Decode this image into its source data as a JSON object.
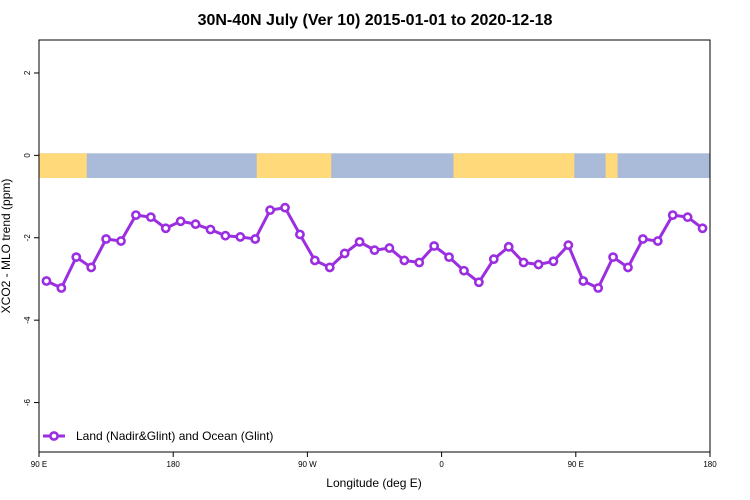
{
  "chart_data": {
    "type": "line",
    "title": "30N-40N July (Ver 10)   2015-01-01 to 2020-12-18",
    "xlabel": "Longitude (deg E)",
    "ylabel": "XCO2 - MLO trend (ppm)",
    "xlim": [
      90,
      540
    ],
    "ylim": [
      -7.2,
      2.8
    ],
    "x_ticks": [
      {
        "value": 90,
        "label": "90 E"
      },
      {
        "value": 180,
        "label": "180"
      },
      {
        "value": 270,
        "label": "90 W"
      },
      {
        "value": 360,
        "label": "0"
      },
      {
        "value": 450,
        "label": "90 E"
      },
      {
        "value": 540,
        "label": "180"
      }
    ],
    "y_ticks": [
      {
        "value": 2,
        "label": "2"
      },
      {
        "value": 0,
        "label": "0"
      },
      {
        "value": -2,
        "label": "-2"
      },
      {
        "value": -4,
        "label": "-4"
      },
      {
        "value": -6,
        "label": "-6"
      }
    ],
    "land_ocean_band": {
      "y_top": 0.05,
      "y_bottom": -0.55,
      "ocean_color": "#A9BBD9",
      "land_color": "#FFD97A",
      "land_longitudes": [
        [
          90,
          122
        ],
        [
          236,
          286
        ],
        [
          368,
          449
        ],
        [
          470,
          478
        ]
      ]
    },
    "series": [
      {
        "name": "Land (Nadir&Glint) and Ocean (Glint)",
        "color": "#9A2EE0",
        "x": [
          95,
          105,
          115,
          125,
          135,
          145,
          155,
          165,
          175,
          185,
          195,
          205,
          215,
          225,
          235,
          245,
          255,
          265,
          275,
          285,
          295,
          305,
          315,
          325,
          335,
          345,
          355,
          365,
          375,
          385,
          395,
          405,
          415,
          425,
          435,
          445,
          455,
          465,
          475,
          485,
          495,
          505,
          515,
          525,
          535
        ],
        "values": [
          -3.05,
          -3.22,
          -2.47,
          -2.72,
          -2.03,
          -2.08,
          -1.45,
          -1.5,
          -1.77,
          -1.6,
          -1.67,
          -1.8,
          -1.95,
          -1.98,
          -2.03,
          -1.33,
          -1.27,
          -1.92,
          -2.55,
          -2.72,
          -2.38,
          -2.1,
          -2.3,
          -2.25,
          -2.55,
          -2.6,
          -2.2,
          -2.47,
          -2.8,
          -3.08,
          -2.52,
          -2.22,
          -2.6,
          -2.65,
          -2.57,
          -2.18,
          -3.05,
          -3.22,
          -2.47,
          -2.72,
          -2.03,
          -2.08,
          -1.45,
          -1.5,
          -1.77
        ]
      }
    ],
    "legend": {
      "position": "bottom-left"
    },
    "grid": false
  }
}
